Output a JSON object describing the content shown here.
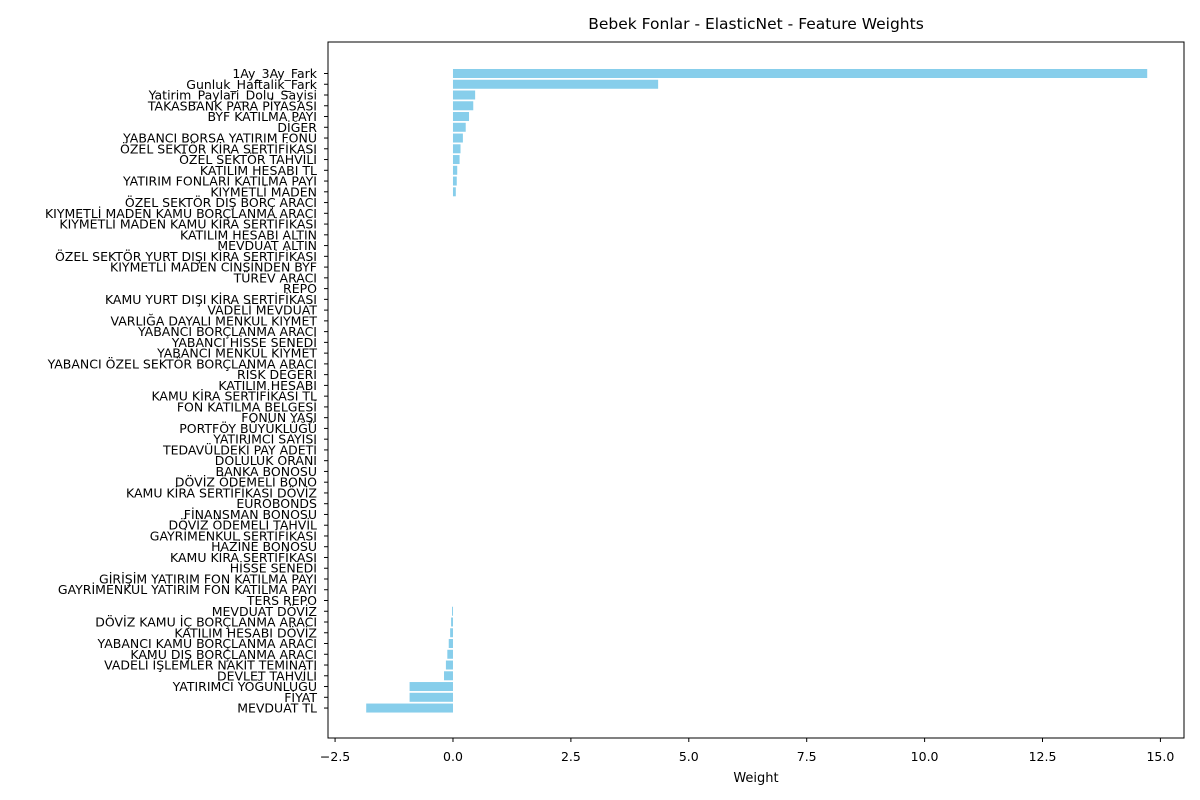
{
  "chart_data": {
    "type": "bar",
    "orientation": "horizontal",
    "title": "Bebek Fonlar - ElasticNet - Feature Weights",
    "xlabel": "Weight",
    "ylabel": "",
    "xlim": [
      -2.65,
      15.5
    ],
    "xticks": [
      -2.5,
      0.0,
      2.5,
      5.0,
      7.5,
      10.0,
      12.5,
      15.0
    ],
    "xtick_labels": [
      "−2.5",
      "0.0",
      "2.5",
      "5.0",
      "7.5",
      "10.0",
      "12.5",
      "15.0"
    ],
    "grid": false,
    "bar_color": "#87ceeb",
    "categories": [
      "1Ay_3Ay_Fark",
      "Gunluk_Haftalik_Fark",
      "Yatirim_Paylari_Dolu_Sayisi",
      "TAKASBANK PARA PİYASASI",
      "BYF KATILMA PAYI",
      "DİĞER",
      "YABANCI BORSA YATIRIM FONU",
      "ÖZEL SEKTÖR KİRA SERTİFİKASI",
      "ÖZEL SEKTÖR TAHVİLİ",
      "KATILIM HESABI TL",
      "YATIRIM FONLARI KATILMA PAYI",
      "KIYMETLİ MADEN",
      "ÖZEL SEKTÖR DIŞ BORÇ ARACI",
      "KIYMETLİ MADEN KAMU BORÇLANMA ARACI",
      "KIYMETLİ MADEN KAMU KİRA SERTİFİKASI",
      "KATILIM HESABI ALTIN",
      "MEVDUAT ALTIN",
      "ÖZEL SEKTÖR YURT DIŞI KİRA SERTİFİKASI",
      "KIYMETLİ MADEN CİNSİNDEN BYF",
      "TÜREV ARACI",
      "REPO",
      "KAMU YURT DIŞI KİRA SERTİFİKASI",
      "VADELİ MEVDUAT",
      "VARLIĞA DAYALI MENKUL KIYMET",
      "YABANCI BORÇLANMA ARACI",
      "YABANCI HİSSE SENEDİ",
      "YABANCI MENKUL KIYMET",
      "YABANCI ÖZEL SEKTÖR BORÇLANMA ARACI",
      "RİSK DEĞERİ",
      "KATILIM HESABI",
      "KAMU KİRA SERTİFİKASI TL",
      "FON KATILMA BELGESİ",
      "FONUN YAŞI",
      "PORTFÖY BÜYÜKLÜĞÜ",
      "YATIRIMCI SAYISI",
      "TEDAVÜLDEKİ PAY ADETİ",
      "DOLULUK ORANI",
      "BANKA BONOSU",
      "DÖVİZ ÖDEMELİ BONO",
      "KAMU KİRA SERTİFİKASI DÖVİZ",
      "EUROBONDS",
      "FİNANSMAN BONOSU",
      "DÖVİZ ÖDEMELİ TAHVİL",
      "GAYRİMENKUL SERTİFİKASI",
      "HAZİNE BONOSU",
      "KAMU KİRA SERTİFİKASI",
      "HİSSE SENEDİ",
      "GİRİŞİM YATIRIM FON KATILMA PAYI",
      "GAYRİMENKUL YATIRIM FON KATILMA PAYI",
      "TERS REPO",
      "MEVDUAT DÖVİZ",
      "DÖVİZ KAMU İÇ BORÇLANMA ARACI",
      "KATILIM HESABI DÖVİZ",
      "YABANCI KAMU BORÇLANMA ARACI",
      "KAMU DIŞ BORÇLANMA ARACI",
      "VADELİ İŞLEMLER NAKİT TEMİNATI",
      "DEVLET TAHVİLİ",
      "YATIRIMCI YOĞUNLUĞU",
      "FİYAT",
      "MEVDUAT TL"
    ],
    "values": [
      14.72,
      4.35,
      0.47,
      0.43,
      0.34,
      0.27,
      0.21,
      0.16,
      0.14,
      0.09,
      0.08,
      0.06,
      0.0,
      0.0,
      0.0,
      0.0,
      0.0,
      0.0,
      0.0,
      0.0,
      0.0,
      0.0,
      0.0,
      0.0,
      0.0,
      0.0,
      0.0,
      0.0,
      0.0,
      0.0,
      0.0,
      0.0,
      0.0,
      0.0,
      0.0,
      0.0,
      0.0,
      0.0,
      0.0,
      0.0,
      0.0,
      0.0,
      0.0,
      0.0,
      0.0,
      0.0,
      0.0,
      0.0,
      0.0,
      0.0,
      -0.02,
      -0.04,
      -0.06,
      -0.09,
      -0.12,
      -0.15,
      -0.19,
      -0.92,
      -0.92,
      -1.84
    ]
  }
}
